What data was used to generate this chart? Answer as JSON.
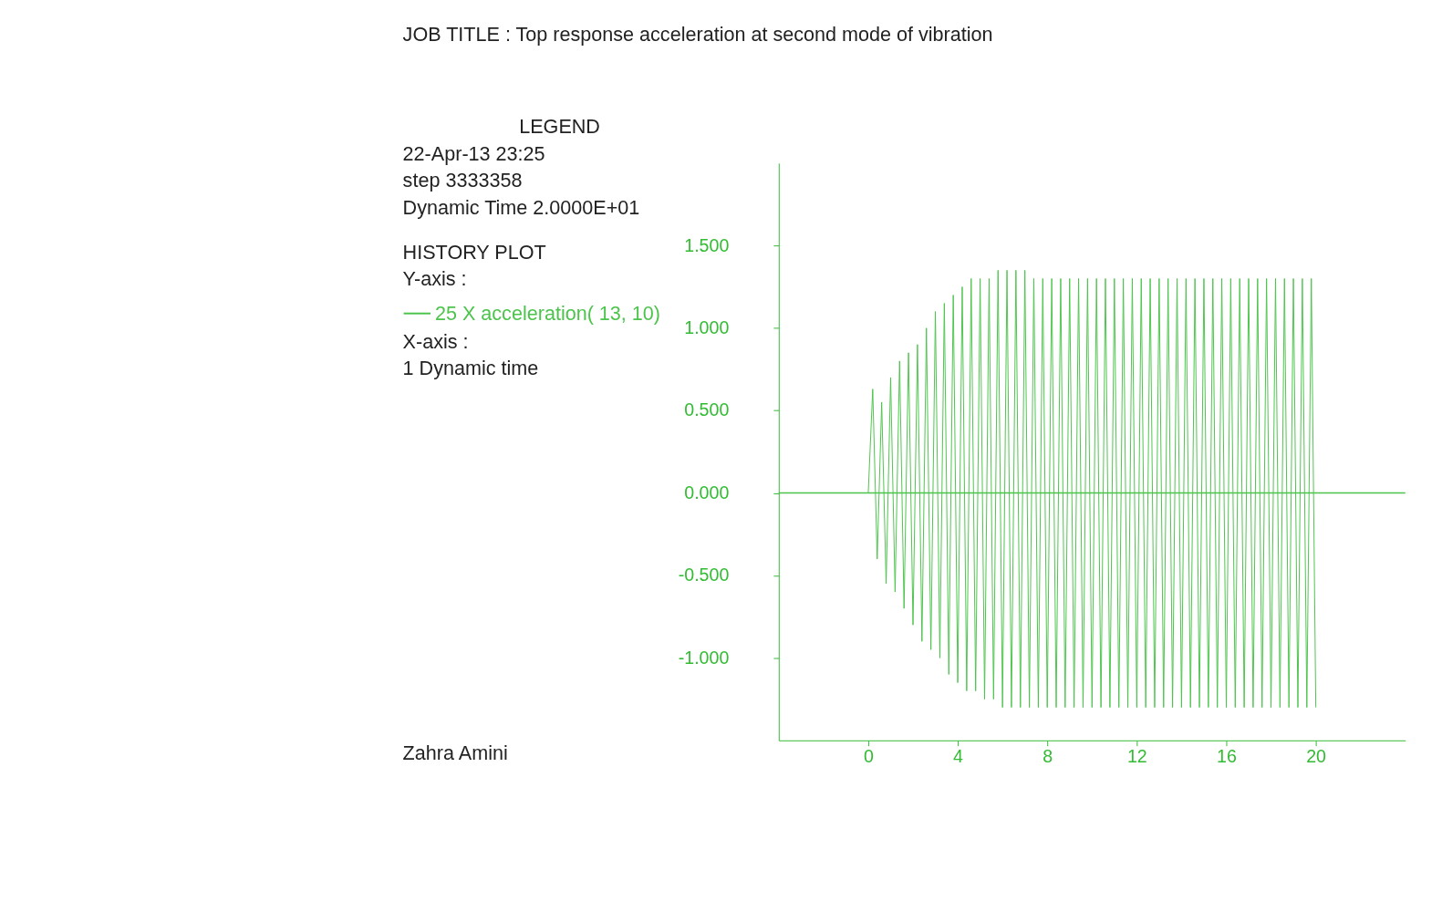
{
  "chart_data": {
    "type": "line",
    "title": "JOB TITLE : Top response acceleration at second mode of vibration",
    "annotations": [
      "LEGEND",
      "22-Apr-13  23:25",
      "step   3333358",
      "Dynamic Time   2.0000E+01",
      "HISTORY PLOT",
      "Y-axis :",
      "X-axis :",
      "1  Dynamic time",
      "Zahra Amini"
    ],
    "x": [
      0,
      0.2,
      0.4,
      0.6,
      0.8,
      1.0,
      1.2,
      1.4,
      1.6,
      1.8,
      2.0,
      2.2,
      2.4,
      2.6,
      2.8,
      3.0,
      3.2,
      3.4,
      3.6,
      3.8,
      4.0,
      4.2,
      4.4,
      4.6,
      4.8,
      5.0,
      5.2,
      5.4,
      5.6,
      5.8,
      6.0,
      6.2,
      6.4,
      6.6,
      6.8,
      7.0,
      7.2,
      7.4,
      7.6,
      7.8,
      8.0,
      8.2,
      8.4,
      8.6,
      8.8,
      9.0,
      9.2,
      9.4,
      9.6,
      9.8,
      10.0,
      10.2,
      10.4,
      10.6,
      10.8,
      11.0,
      11.2,
      11.4,
      11.6,
      11.8,
      12.0,
      12.2,
      12.4,
      12.6,
      12.8,
      13.0,
      13.2,
      13.4,
      13.6,
      13.8,
      14.0,
      14.2,
      14.4,
      14.6,
      14.8,
      15.0,
      15.2,
      15.4,
      15.6,
      15.8,
      16.0,
      16.2,
      16.4,
      16.6,
      16.8,
      17.0,
      17.2,
      17.4,
      17.6,
      17.8,
      18.0,
      18.2,
      18.4,
      18.6,
      18.8,
      19.0,
      19.2,
      19.4,
      19.6,
      19.8,
      20.0
    ],
    "series": [
      {
        "name": "25 X acceleration( 13,  10)",
        "color": "#4cc44c",
        "values": [
          0,
          0.63,
          -0.4,
          0.55,
          -0.55,
          0.7,
          -0.6,
          0.8,
          -0.7,
          0.85,
          -0.8,
          0.9,
          -0.9,
          1.0,
          -0.95,
          1.1,
          -1.0,
          1.15,
          -1.1,
          1.2,
          -1.15,
          1.25,
          -1.2,
          1.3,
          -1.2,
          1.3,
          -1.25,
          1.3,
          -1.25,
          1.35,
          -1.3,
          1.35,
          -1.3,
          1.35,
          -1.3,
          1.35,
          -1.3,
          1.3,
          -1.3,
          1.3,
          -1.3,
          1.3,
          -1.3,
          1.3,
          -1.3,
          1.3,
          -1.3,
          1.3,
          -1.3,
          1.3,
          -1.3,
          1.3,
          -1.3,
          1.3,
          -1.3,
          1.3,
          -1.3,
          1.3,
          -1.3,
          1.3,
          -1.3,
          1.3,
          -1.3,
          1.3,
          -1.3,
          1.3,
          -1.3,
          1.3,
          -1.3,
          1.3,
          -1.3,
          1.3,
          -1.3,
          1.3,
          -1.3,
          1.3,
          -1.3,
          1.3,
          -1.3,
          1.3,
          -1.3,
          1.3,
          -1.3,
          1.3,
          -1.3,
          1.3,
          -1.3,
          1.3,
          -1.3,
          1.3,
          -1.3,
          1.3,
          -1.3,
          1.3,
          -1.3,
          1.3,
          -1.3,
          1.3,
          -1.3,
          1.3,
          -1.3
        ]
      }
    ],
    "xlim": [
      -4,
      24
    ],
    "xticks": [
      0,
      4,
      8,
      12,
      16,
      20
    ],
    "ylim": [
      -1.5,
      2.0
    ],
    "yticks": [
      {
        "value": -1.0,
        "label": "-1.000"
      },
      {
        "value": -0.5,
        "label": "-0.500"
      },
      {
        "value": 0,
        "label": "0.000"
      },
      {
        "value": 0.5,
        "label": "0.500"
      },
      {
        "value": 1.0,
        "label": "1.000"
      },
      {
        "value": 1.5,
        "label": "1.500"
      }
    ],
    "ref_lines": [
      {
        "axis": "y",
        "value": 0,
        "color": "#4cc44c"
      }
    ],
    "grid": false,
    "legend": "left",
    "line_style": "solid"
  }
}
